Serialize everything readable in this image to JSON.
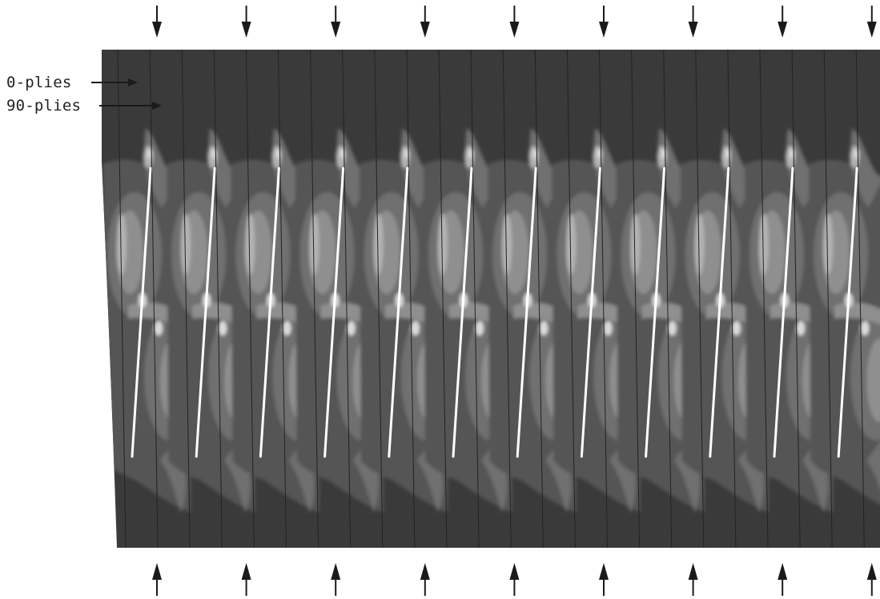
{
  "labels": {
    "zero_plies": "0-plies",
    "ninety_plies": "90-plies"
  },
  "arrows": {
    "top_count": 9,
    "bottom_count": 9,
    "top_direction": "down",
    "bottom_direction": "up"
  },
  "specimen": {
    "repeat_units": 12,
    "crack_count": 12,
    "colors": {
      "background": "#3a3a3a",
      "band_1": "#555555",
      "band_2": "#707070",
      "band_3": "#8f8f8f",
      "band_4": "#b3b3b3",
      "band_5": "#dcdcdc",
      "crack": "#ffffff",
      "ply_line": "#222222",
      "arrow": "#1a1a1a"
    }
  }
}
